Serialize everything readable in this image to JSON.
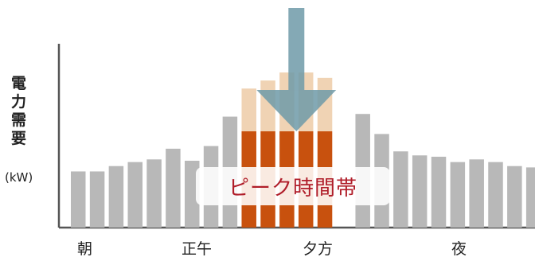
{
  "chart_data": {
    "type": "bar",
    "title": "",
    "ylabel_chars": [
      "電",
      "力",
      "需",
      "要"
    ],
    "yunit": "(kW)",
    "x_tick_labels": [
      {
        "label": "朝",
        "index": 1
      },
      {
        "label": "正午",
        "index": 6
      },
      {
        "label": "夕方",
        "index": 12
      },
      {
        "label": "夜",
        "index": 20
      }
    ],
    "values": [
      42,
      42,
      46,
      49,
      51,
      59,
      50,
      61,
      83,
      104,
      110,
      116,
      116,
      112,
      100,
      85,
      70,
      57,
      54,
      53,
      49,
      51,
      49,
      46,
      45
    ],
    "peak": {
      "start_index": 9,
      "end_index": 14,
      "reduced_values": [
        72,
        72,
        72,
        72,
        72
      ],
      "label": "ピーク時間帯"
    },
    "colors": {
      "bar": "#b8b8b8",
      "peak_reduced": "#c8510e",
      "peak_cut": "#f0d3b4",
      "arrow": "#6e9aa8",
      "axis": "#555555"
    }
  }
}
